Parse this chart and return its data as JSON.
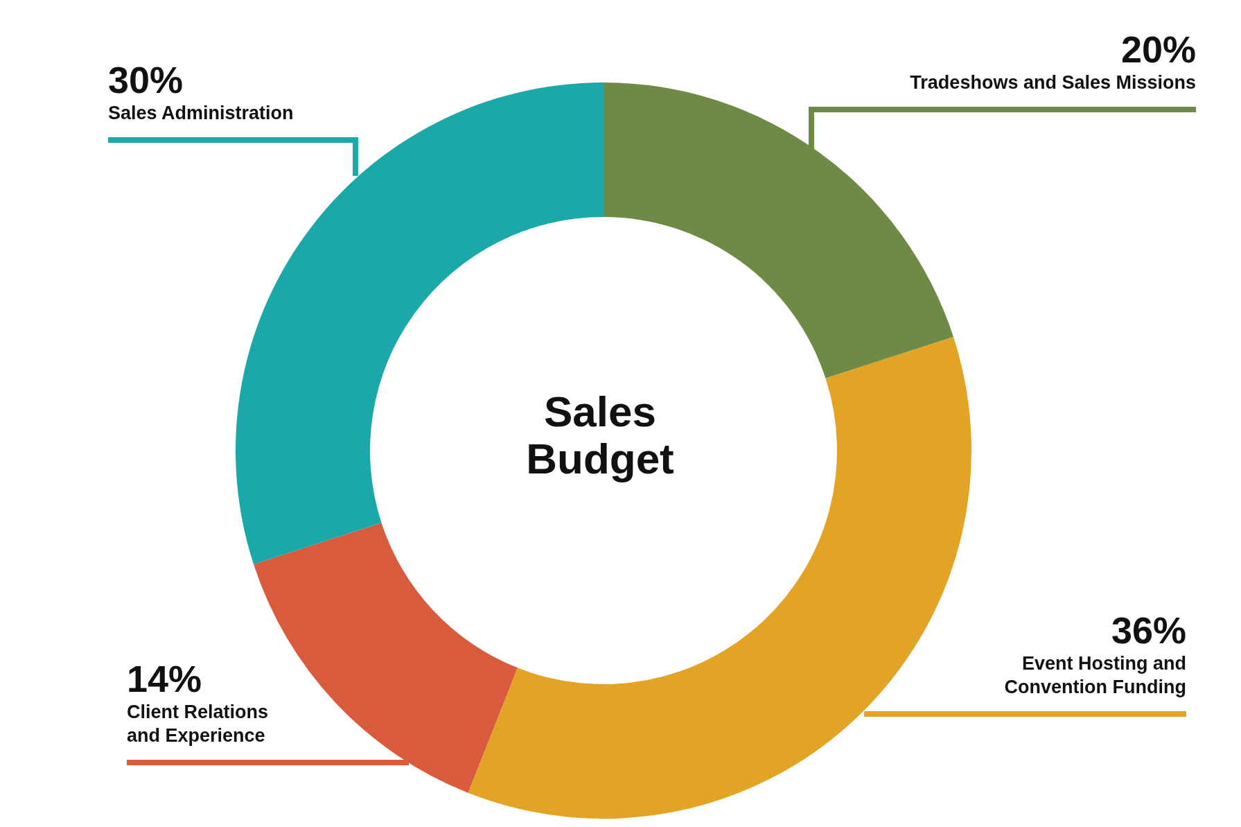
{
  "chart_data": {
    "type": "donut",
    "title": "Sales Budget",
    "categories": [
      "Tradeshows and Sales Missions",
      "Event Hosting and Convention Funding",
      "Client Relations and Experience",
      "Sales Administration"
    ],
    "values": [
      20,
      36,
      14,
      30
    ],
    "value_labels": [
      "20%",
      "36%",
      "14%",
      "30%"
    ],
    "colors": [
      "#6d8b47",
      "#e3a324",
      "#d95b3e",
      "#1aa8a8"
    ]
  }
}
